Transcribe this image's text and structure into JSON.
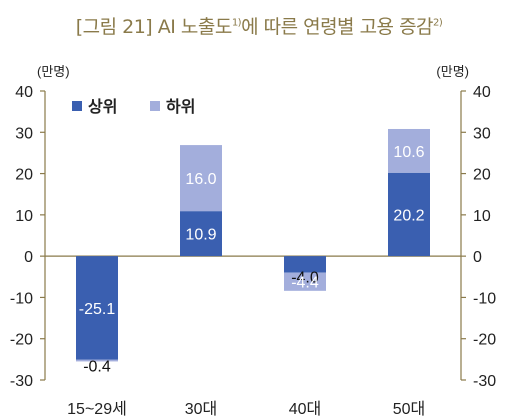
{
  "title": {
    "prefix": "[그림 21] AI 노출도",
    "sup1": "1)",
    "middle": "에 따른 연령별 고용 증감",
    "sup2": "2)"
  },
  "chart_data": {
    "type": "bar",
    "stacked": true,
    "unit_left": "(만명)",
    "unit_right": "(만명)",
    "categories": [
      "15~29세",
      "30대",
      "40대",
      "50대"
    ],
    "series": [
      {
        "name": "상위",
        "color": "#3a5fb0",
        "values": [
          -25.1,
          10.9,
          -4.0,
          20.2
        ],
        "labels": [
          "-25.1",
          "10.9",
          "-4.0",
          "20.2"
        ]
      },
      {
        "name": "하위",
        "color": "#a3aedc",
        "values": [
          -0.4,
          16.0,
          -4.4,
          10.6
        ],
        "labels": [
          "-0.4",
          "16.0",
          "-4.4",
          "10.6"
        ]
      }
    ],
    "ylim": [
      -30,
      40
    ],
    "yticks": [
      "40",
      "30",
      "20",
      "10",
      "0",
      "-10",
      "-20",
      "-30"
    ],
    "ytick_values": [
      40,
      30,
      20,
      10,
      0,
      -10,
      -20,
      -30
    ],
    "legend_position": "top-left",
    "grid": false
  }
}
